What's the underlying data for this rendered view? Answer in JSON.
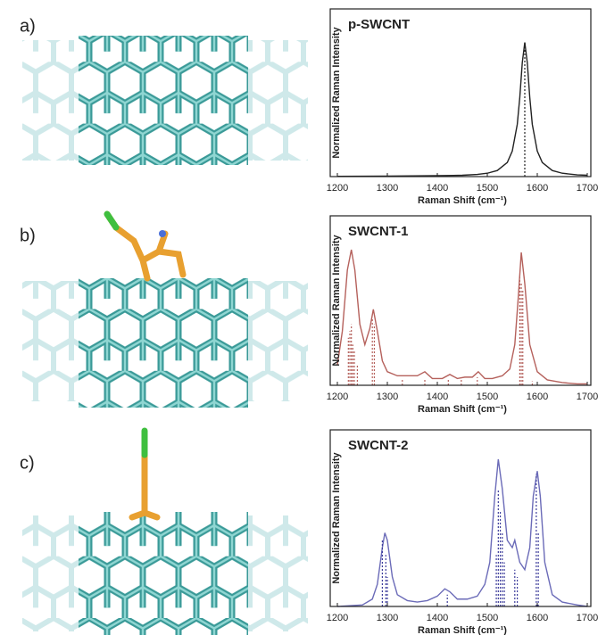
{
  "panels": [
    "a)",
    "b)",
    "c)"
  ],
  "chart_data": [
    {
      "type": "line",
      "title": "p-SWCNT",
      "x_label": "Raman Shift (cm⁻¹)",
      "y_label": "Normalized Raman Intensity",
      "xlim": [
        1200,
        1700
      ],
      "xticks": [
        1200,
        1300,
        1400,
        1500,
        1600,
        1700
      ],
      "ylim": [
        0,
        1.25
      ],
      "x": [
        1200,
        1300,
        1400,
        1450,
        1480,
        1500,
        1520,
        1540,
        1550,
        1560,
        1565,
        1570,
        1575,
        1580,
        1585,
        1590,
        1600,
        1610,
        1630,
        1650,
        1680,
        1700
      ],
      "series": [
        {
          "color": "#222222",
          "values": [
            0.002,
            0.004,
            0.007,
            0.01,
            0.016,
            0.025,
            0.045,
            0.105,
            0.19,
            0.39,
            0.59,
            0.85,
            1.0,
            0.85,
            0.59,
            0.39,
            0.19,
            0.105,
            0.045,
            0.025,
            0.013,
            0.01
          ]
        }
      ],
      "sticks": {
        "color": "#222222",
        "x": [
          1575
        ],
        "values": [
          1.0
        ]
      }
    },
    {
      "type": "line",
      "title": "SWCNT-1",
      "x_label": "Raman Shift (cm⁻¹)",
      "y_label": "Normalized Raman Intensity",
      "xlim": [
        1200,
        1700
      ],
      "xticks": [
        1200,
        1300,
        1400,
        1500,
        1600,
        1700
      ],
      "ylim": [
        0,
        1.25
      ],
      "x": [
        1200,
        1210,
        1220,
        1228,
        1235,
        1245,
        1255,
        1265,
        1272,
        1280,
        1290,
        1300,
        1320,
        1340,
        1360,
        1375,
        1390,
        1410,
        1425,
        1440,
        1455,
        1470,
        1482,
        1495,
        1510,
        1530,
        1545,
        1555,
        1562,
        1568,
        1575,
        1585,
        1600,
        1620,
        1650,
        1680,
        1700
      ],
      "series": [
        {
          "color": "#b5615c",
          "values": [
            0.15,
            0.4,
            0.85,
            1.0,
            0.85,
            0.45,
            0.3,
            0.42,
            0.56,
            0.4,
            0.18,
            0.1,
            0.07,
            0.07,
            0.07,
            0.1,
            0.05,
            0.05,
            0.08,
            0.05,
            0.06,
            0.06,
            0.1,
            0.05,
            0.05,
            0.07,
            0.12,
            0.3,
            0.65,
            0.98,
            0.75,
            0.3,
            0.1,
            0.04,
            0.02,
            0.01,
            0.01
          ]
        }
      ],
      "sticks": {
        "color": "#b5615c",
        "x": [
          1222,
          1225,
          1228,
          1231,
          1234,
          1240,
          1270,
          1274,
          1330,
          1375,
          1422,
          1448,
          1480,
          1565,
          1568,
          1571,
          1590
        ],
        "values": [
          0.35,
          0.4,
          0.45,
          0.3,
          0.25,
          0.15,
          0.5,
          0.45,
          0.04,
          0.05,
          0.05,
          0.04,
          0.06,
          0.8,
          0.75,
          0.7,
          0.03
        ]
      }
    },
    {
      "type": "line",
      "title": "SWCNT-2",
      "x_label": "Raman Shift (cm⁻¹)",
      "y_label": "Normalized Raman Intensity",
      "xlim": [
        1200,
        1700
      ],
      "xticks": [
        1200,
        1300,
        1400,
        1500,
        1600,
        1700
      ],
      "ylim": [
        0,
        1.2
      ],
      "x": [
        1200,
        1250,
        1270,
        1280,
        1290,
        1295,
        1300,
        1310,
        1320,
        1340,
        1360,
        1380,
        1400,
        1415,
        1425,
        1440,
        1460,
        1480,
        1495,
        1505,
        1515,
        1522,
        1530,
        1540,
        1550,
        1555,
        1565,
        1575,
        1585,
        1592,
        1600,
        1606,
        1615,
        1630,
        1650,
        1680,
        1700
      ],
      "series": [
        {
          "color": "#6b6bb8",
          "values": [
            0.0,
            0.01,
            0.05,
            0.15,
            0.4,
            0.5,
            0.45,
            0.2,
            0.08,
            0.04,
            0.03,
            0.04,
            0.07,
            0.12,
            0.1,
            0.05,
            0.05,
            0.07,
            0.15,
            0.3,
            0.75,
            1.0,
            0.8,
            0.45,
            0.4,
            0.45,
            0.3,
            0.25,
            0.4,
            0.75,
            0.92,
            0.75,
            0.3,
            0.08,
            0.03,
            0.01,
            0.0
          ]
        }
      ],
      "sticks": {
        "color": "#3b3b9b",
        "x": [
          1290,
          1297,
          1300,
          1420,
          1518,
          1522,
          1526,
          1530,
          1534,
          1555,
          1560,
          1598,
          1602
        ],
        "values": [
          0.45,
          0.35,
          0.2,
          0.08,
          0.35,
          0.8,
          0.65,
          0.5,
          0.3,
          0.25,
          0.2,
          0.9,
          0.5
        ]
      }
    }
  ]
}
